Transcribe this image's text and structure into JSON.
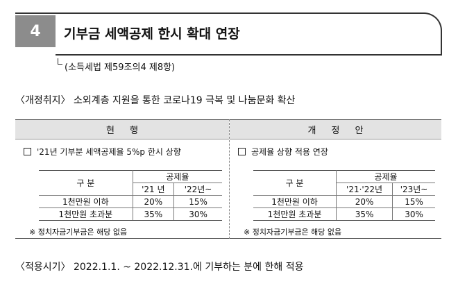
{
  "section": {
    "number": "4",
    "title": "기부금 세액공제 한시 확대 연장",
    "legal_ref": "(소득세법 제59조의4 제8항)"
  },
  "purpose": "〈개정취지〉 소외계층 지원을 통한 코로나19 극복 및 나눔문화 확산",
  "current": {
    "header": "현행",
    "check_text": "'21년 기부분 세액공제율 5%p 한시 상향",
    "table": {
      "col_group": "공제율",
      "row_header": "구  분",
      "cols": [
        "'21 년",
        "'22년~"
      ],
      "rows": [
        {
          "label": "1천만원 이하",
          "values": [
            "20%",
            "15%"
          ]
        },
        {
          "label": "1천만원 초과분",
          "values": [
            "35%",
            "30%"
          ]
        }
      ]
    },
    "note": "※ 정치자금기부금은 해당 없음"
  },
  "revised": {
    "header": "개정안",
    "check_text": "공제율 상향 적용 연장",
    "table": {
      "col_group": "공제율",
      "row_header": "구  분",
      "cols": [
        "'21·'22년",
        "'23년~"
      ],
      "rows": [
        {
          "label": "1천만원 이하",
          "values": [
            "20%",
            "15%"
          ]
        },
        {
          "label": "1천만원 초과분",
          "values": [
            "35%",
            "30%"
          ]
        }
      ]
    },
    "note": "※ 정치자금기부금은 해당 없음"
  },
  "timing": "〈적용시기〉 2022.1.1. ~ 2022.12.31.에 기부하는 분에 한해 적용"
}
